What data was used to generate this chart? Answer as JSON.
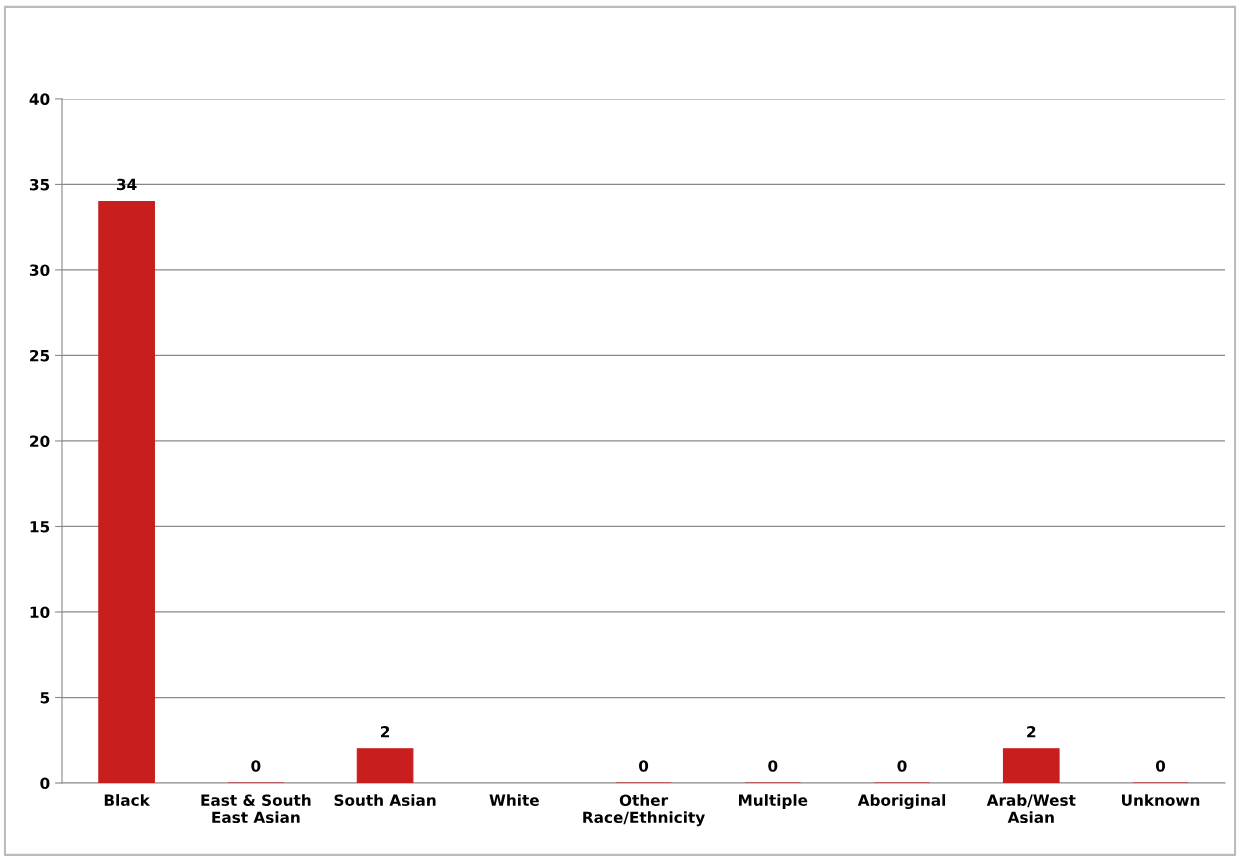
{
  "chart_data": {
    "type": "bar",
    "categories": [
      "Black",
      "East & South\nEast Asian",
      "South Asian",
      "White",
      "Other\nRace/Ethnicity",
      "Multiple",
      "Aboriginal",
      "Arab/West\nAsian",
      "Unknown"
    ],
    "values": [
      34,
      0,
      2,
      null,
      0,
      0,
      0,
      2,
      0
    ],
    "value_labels": [
      "34",
      "0",
      "2",
      null,
      "0",
      "0",
      "0",
      "2",
      "0"
    ],
    "color": "#c81e1e",
    "ylim": [
      0,
      40
    ],
    "yticks": [
      0,
      5,
      10,
      15,
      20,
      25,
      30,
      35,
      40
    ],
    "grid": "y"
  }
}
